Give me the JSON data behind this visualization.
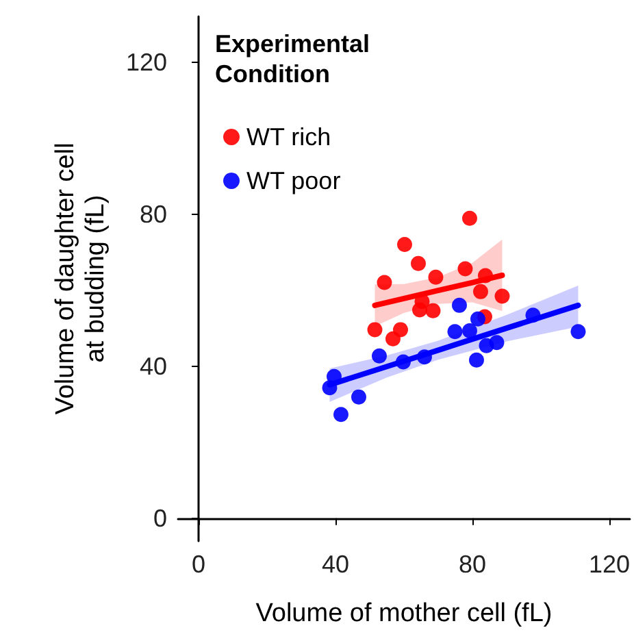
{
  "chart_data": {
    "type": "scatter",
    "xlabel": "Volume of mother cell (fL)",
    "ylabel": "Volume of daughter cell\nat budding (fL)",
    "legend_title": "Experimental\nCondition",
    "legend": "top left",
    "grid": false,
    "marker": "circle",
    "xlim": [
      -6,
      126
    ],
    "ylim": [
      -6,
      132
    ],
    "xticks": [
      0,
      40,
      80,
      120
    ],
    "yticks": [
      0,
      40,
      80,
      120
    ],
    "series": [
      {
        "name": "WT rich",
        "color": "#ff0000",
        "x": [
          79.2,
          60.2,
          64.2,
          69.3,
          77.9,
          54.3,
          83.8,
          82.4,
          88.7,
          65.3,
          64.6,
          68.5,
          51.5,
          59.0,
          56.8,
          83.6
        ],
        "values": [
          78.9,
          72.0,
          67.0,
          63.4,
          65.6,
          62.0,
          63.8,
          59.6,
          58.4,
          57.0,
          54.8,
          54.6,
          49.6,
          49.6,
          47.2,
          53.0
        ]
      },
      {
        "name": "WT poor",
        "color": "#0000ff",
        "x": [
          76.2,
          81.6,
          74.9,
          79.2,
          97.7,
          110.9,
          84.1,
          87.1,
          81.2,
          52.8,
          59.8,
          66.0,
          39.6,
          38.3,
          46.8,
          41.6
        ],
        "values": [
          56.0,
          52.4,
          49.1,
          49.3,
          53.4,
          49.1,
          45.4,
          46.2,
          41.6,
          42.7,
          41.1,
          42.4,
          37.3,
          34.3,
          31.9,
          27.3
        ]
      },
      {
        "type": "line",
        "marker": "none",
        "color": "#ff0000",
        "x": [
          51.5,
          60,
          70,
          80,
          88.7
        ],
        "values": [
          56.0,
          57.8,
          59.9,
          62.0,
          63.9
        ],
        "lower": [
          50.5,
          54.0,
          56.4,
          56.8,
          54.5
        ],
        "upper": [
          61.5,
          61.6,
          63.4,
          67.2,
          73.3
        ]
      },
      {
        "type": "line",
        "marker": "none",
        "color": "#0000ff",
        "x": [
          38.3,
          55,
          70,
          90,
          110.9
        ],
        "values": [
          35.1,
          39.9,
          44.2,
          50.0,
          56.0
        ],
        "lower": [
          30.6,
          37.0,
          41.7,
          46.5,
          50.4
        ],
        "upper": [
          39.4,
          42.8,
          46.7,
          53.5,
          61.2
        ]
      }
    ]
  }
}
